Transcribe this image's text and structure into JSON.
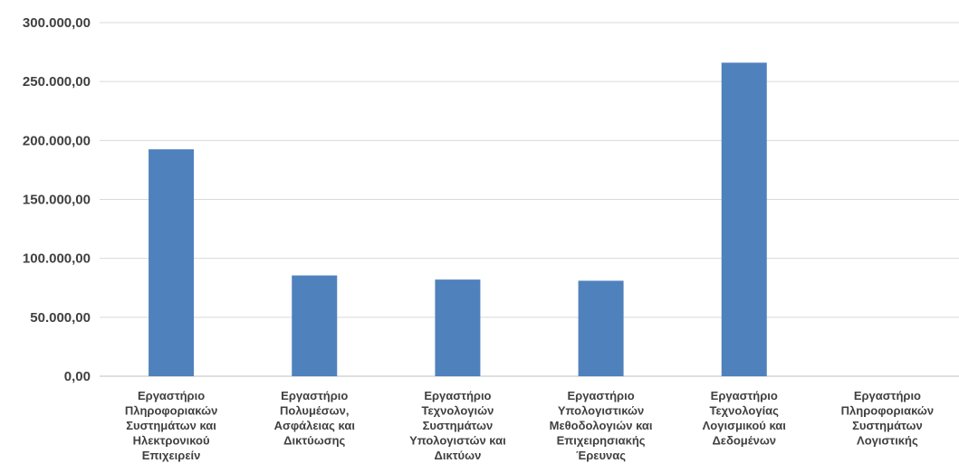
{
  "chart_data": {
    "type": "bar",
    "categories": [
      "Εργαστήριο Πληροφοριακών Συστημάτων και Ηλεκτρονικού Επιχειρείν",
      "Εργαστήριο Πολυμέσων, Ασφάλειας και Δικτύωσης",
      "Εργαστήριο Τεχνολογιών Συστημάτων Υπολογιστών και Δικτύων",
      "Εργαστήριο Υπολογιστικών Μεθοδολογιών και Επιχειρησιακής Έρευνας",
      "Εργαστήριο Τεχνολογίας Λογισμικού και Δεδομένων",
      "Εργαστήριο Πληροφοριακών Συστημάτων Λογιστικής"
    ],
    "category_lines": [
      [
        "Εργαστήριο",
        "Πληροφοριακών",
        "Συστημάτων και",
        "Ηλεκτρονικού",
        "Επιχειρείν"
      ],
      [
        "Εργαστήριο",
        "Πολυμέσων,",
        "Ασφάλειας και",
        "Δικτύωσης"
      ],
      [
        "Εργαστήριο",
        "Τεχνολογιών",
        "Συστημάτων",
        "Υπολογιστών και",
        "Δικτύων"
      ],
      [
        "Εργαστήριο",
        "Υπολογιστικών",
        "Μεθοδολογιών και",
        "Επιχειρησιακής",
        "Έρευνας"
      ],
      [
        "Εργαστήριο",
        "Τεχνολογίας",
        "Λογισμικού και",
        "Δεδομένων"
      ],
      [
        "Εργαστήριο",
        "Πληροφοριακών",
        "Συστημάτων",
        "Λογιστικής"
      ]
    ],
    "values": [
      192500,
      85500,
      82000,
      81000,
      266000,
      0
    ],
    "yticks": [
      "0,00",
      "50.000,00",
      "100.000,00",
      "150.000,00",
      "200.000,00",
      "250.000,00",
      "300.000,00"
    ],
    "ylim": [
      0,
      300000
    ],
    "grid": true,
    "bar_color": "#4f81bd",
    "grid_color": "#d9d9d9",
    "title": "",
    "xlabel": "",
    "ylabel": ""
  }
}
